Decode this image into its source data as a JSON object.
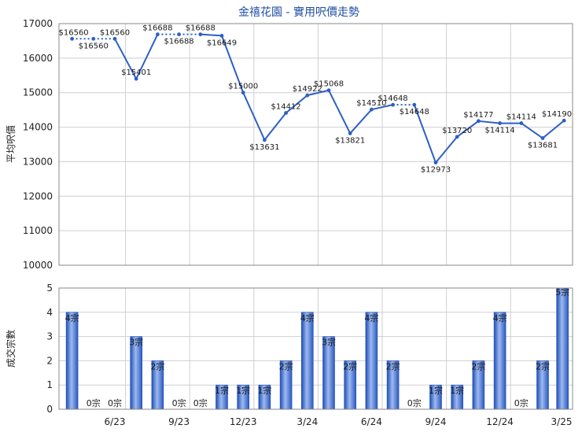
{
  "title": "金禧花園 - 實用呎價走勢",
  "colors": {
    "line": "#2f5fc4",
    "bar": "#2f5fc4",
    "bar_light": "#8fb0ec",
    "grid": "#cfcfcf",
    "title": "#1f4ea3"
  },
  "chart_data": [
    {
      "type": "line",
      "title": "金禧花園 - 實用呎價走勢",
      "ylabel": "平均呎價",
      "ylim": [
        10000,
        17000
      ],
      "yticks": [
        10000,
        11000,
        12000,
        13000,
        14000,
        15000,
        16000,
        17000
      ],
      "grid": true,
      "points": [
        {
          "y": 16560,
          "label": "$16560",
          "dotted_next": true
        },
        {
          "y": 16560,
          "label": "$16560",
          "dotted_next": true
        },
        {
          "y": 16560,
          "label": "$16560"
        },
        {
          "y": 15401,
          "label": "$15401"
        },
        {
          "y": 16688,
          "label": "$16688",
          "dotted_next": true
        },
        {
          "y": 16688,
          "label": "$16688",
          "dotted_next": true
        },
        {
          "y": 16688,
          "label": "$16688"
        },
        {
          "y": 16649,
          "label": "$16649"
        },
        {
          "y": 15000,
          "label": "$15000"
        },
        {
          "y": 13631,
          "label": "$13631"
        },
        {
          "y": 14412,
          "label": "$14412"
        },
        {
          "y": 14922,
          "label": "$14922"
        },
        {
          "y": 15068,
          "label": "$15068"
        },
        {
          "y": 13821,
          "label": "$13821"
        },
        {
          "y": 14510,
          "label": "$14510"
        },
        {
          "y": 14648,
          "label": "$14648",
          "dotted_next": true
        },
        {
          "y": 14648,
          "label": "$14648"
        },
        {
          "y": 12973,
          "label": "$12973"
        },
        {
          "y": 13720,
          "label": "$13720"
        },
        {
          "y": 14177,
          "label": "$14177"
        },
        {
          "y": 14114,
          "label": "$14114"
        },
        {
          "y": 14114,
          "label": "$14114"
        },
        {
          "y": 13681,
          "label": "$13681"
        },
        {
          "y": 14190,
          "label": "$14190"
        }
      ]
    },
    {
      "type": "bar",
      "ylabel": "成交宗數",
      "ylim": [
        0,
        5
      ],
      "yticks": [
        0,
        1,
        2,
        3,
        4,
        5
      ],
      "grid": true,
      "x_tick_labels": [
        "6/23",
        "9/23",
        "12/23",
        "3/24",
        "6/24",
        "9/24",
        "12/24",
        "3/25"
      ],
      "values": [
        4,
        0,
        0,
        3,
        2,
        0,
        0,
        1,
        1,
        1,
        2,
        4,
        3,
        2,
        4,
        2,
        0,
        1,
        1,
        2,
        4,
        0,
        2,
        5
      ],
      "value_labels": [
        "4宗",
        "0宗",
        "0宗",
        "3宗",
        "2宗",
        "0宗",
        "0宗",
        "1宗",
        "1宗",
        "1宗",
        "2宗",
        "4宗",
        "3宗",
        "2宗",
        "4宗",
        "2宗",
        "0宗",
        "1宗",
        "1宗",
        "2宗",
        "4宗",
        "0宗",
        "2宗",
        "5宗"
      ]
    }
  ]
}
